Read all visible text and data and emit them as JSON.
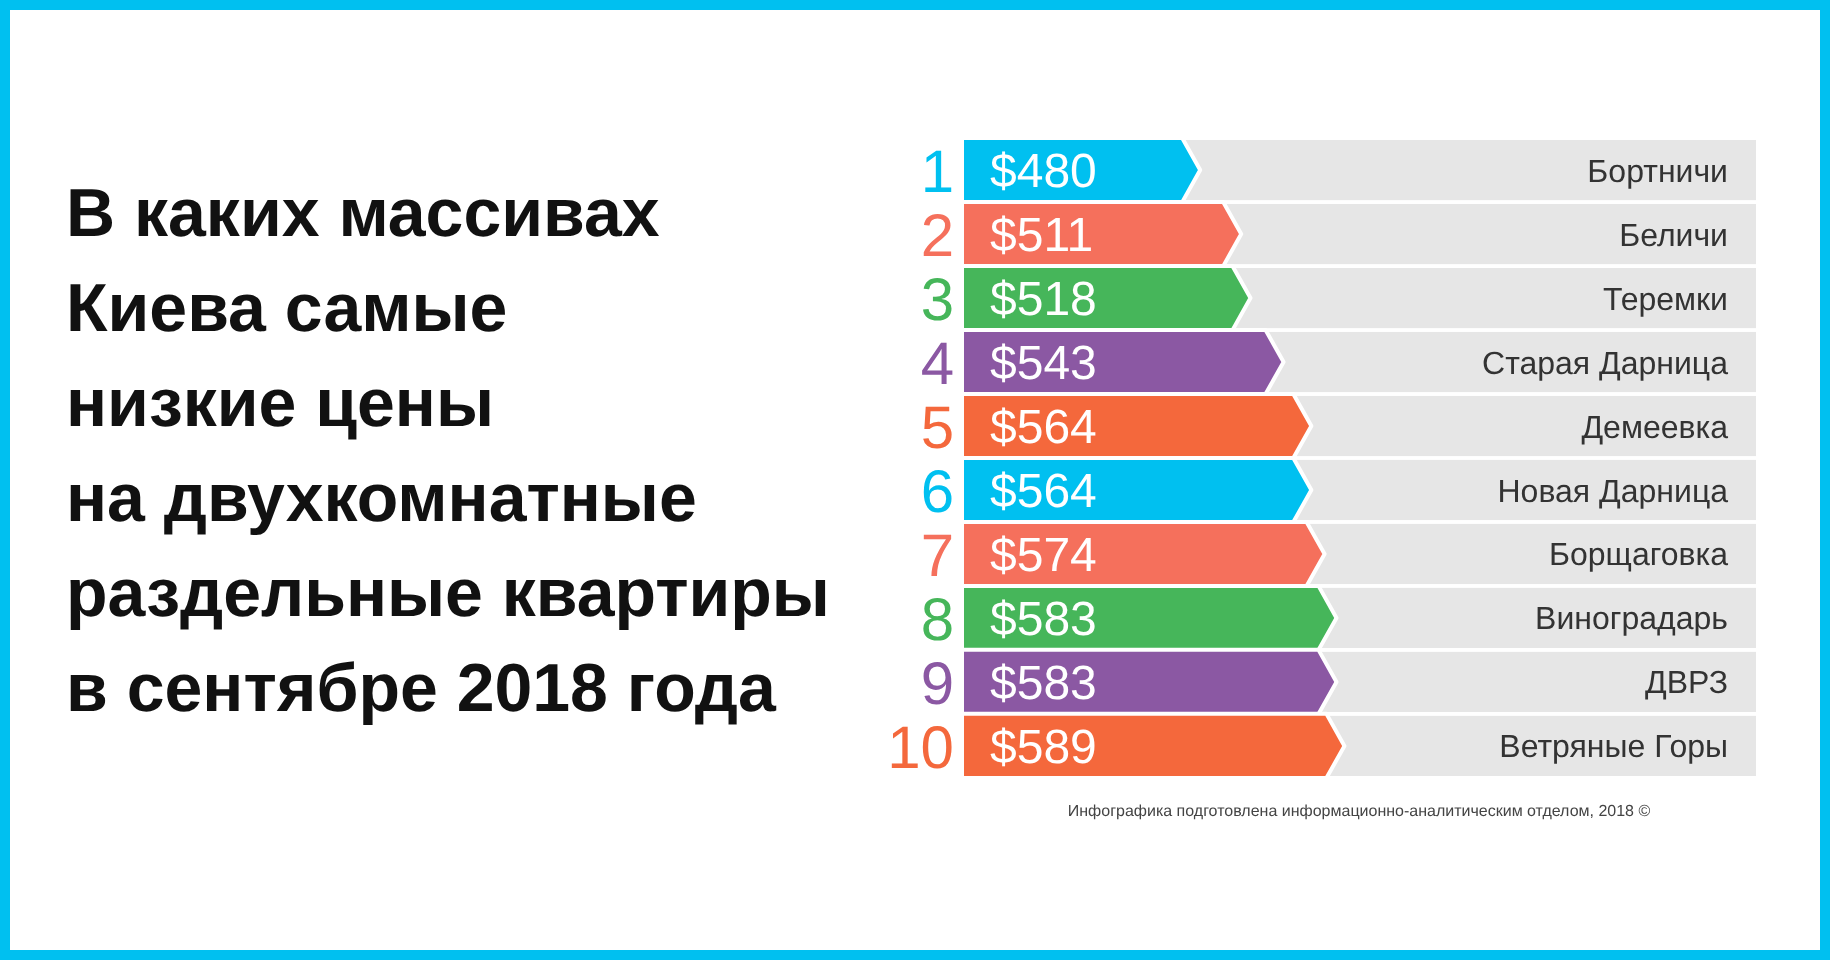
{
  "chart_data": {
    "type": "bar",
    "orientation": "horizontal",
    "title": "В каких массивах\nКиева самые\nнизкие цены\nна двухкомнатные\nраздельные квартиры\nв сентябре 2018 года",
    "categories": [
      "Бортничи",
      "Беличи",
      "Теремки",
      "Старая Дарница",
      "Демеевка",
      "Новая Дарница",
      "Борщаговка",
      "Виноградарь",
      "ДВРЗ",
      "Ветряные Горы"
    ],
    "values": [
      480,
      511,
      518,
      543,
      564,
      564,
      574,
      583,
      583,
      589
    ],
    "value_labels": [
      "$480",
      "$511",
      "$518",
      "$543",
      "$564",
      "$564",
      "$574",
      "$583",
      "$583",
      "$589"
    ],
    "colors": [
      "#00c0f0",
      "#f5705c",
      "#46b65a",
      "#8b58a3",
      "#f4683c",
      "#00c0f0",
      "#f5705c",
      "#46b65a",
      "#8b58a3",
      "#f4683c"
    ],
    "xlim": [
      300,
      900
    ],
    "tick_labels": "y",
    "annotations": [
      "1",
      "2",
      "3",
      "4",
      "5",
      "6",
      "7",
      "8",
      "9",
      "10",
      "Инфографика подготовлена информационно-аналитическим отделом, 2018 ©"
    ]
  }
}
